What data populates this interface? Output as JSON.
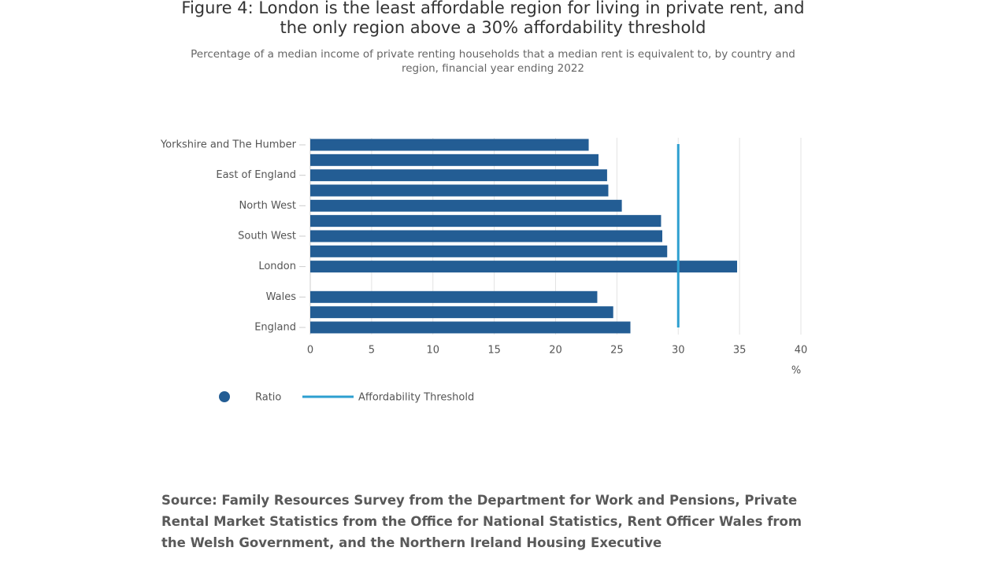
{
  "chart_data": {
    "type": "bar",
    "orientation": "horizontal",
    "title": "Figure 4: London is the least affordable region for living in private rent, and the only region above a 30% affordability threshold",
    "subtitle": "Percentage of a median income of private renting households that a median rent is equivalent to, by country and region, financial year ending 2022",
    "categories": [
      "Yorkshire and The Humber",
      null,
      "East of England",
      null,
      "North West",
      null,
      "South West",
      null,
      "London",
      null,
      "Wales",
      null,
      "England"
    ],
    "series": [
      {
        "name": "Ratio",
        "color": "#235d94",
        "values": [
          22.7,
          23.5,
          24.2,
          24.3,
          25.4,
          28.6,
          28.7,
          29.1,
          34.8,
          null,
          23.4,
          24.7,
          26.1
        ]
      }
    ],
    "reference_lines": [
      {
        "name": "Affordability Threshold",
        "value": 30,
        "color": "#2d9fd0"
      }
    ],
    "xlim": [
      0,
      40
    ],
    "xticks": [
      0,
      5,
      10,
      15,
      20,
      25,
      30,
      35,
      40
    ],
    "x_label": "%",
    "grid": true,
    "source": "Source: Family Resources Survey from the Department for Work and Pensions, Private Rental Market Statistics from the Office for National Statistics, Rent Officer Wales from the Welsh Government, and the Northern Ireland Housing Executive"
  }
}
